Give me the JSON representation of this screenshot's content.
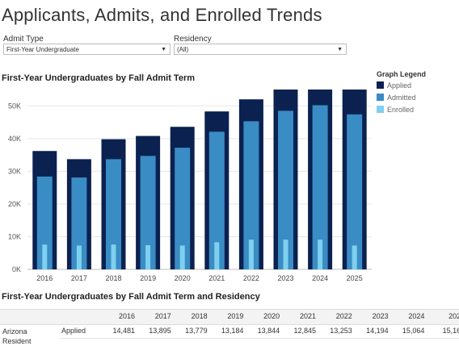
{
  "page": {
    "title": "Applicants, Admits, and Enrolled Trends"
  },
  "filters": {
    "admit_type": {
      "label": "Admit Type",
      "value": "First-Year Undergraduate"
    },
    "residency": {
      "label": "Residency",
      "value": "(All)"
    }
  },
  "legend": {
    "title": "Graph Legend",
    "items": [
      {
        "label": "Applied",
        "color": "#0b2150"
      },
      {
        "label": "Admitted",
        "color": "#3a8cc4"
      },
      {
        "label": "Enrolled",
        "color": "#7fd0ee"
      }
    ]
  },
  "chart_data": {
    "type": "bar",
    "title": "First-Year Undergraduates by Fall Admit Term",
    "xlabel": "",
    "ylabel": "",
    "categories": [
      "2016",
      "2017",
      "2018",
      "2019",
      "2020",
      "2021",
      "2022",
      "2023",
      "2024",
      "2025"
    ],
    "series": [
      {
        "name": "Applied",
        "color": "#0b2150",
        "values": [
          36200,
          33700,
          39800,
          40800,
          43600,
          48300,
          52000,
          55200,
          55000,
          55300
        ]
      },
      {
        "name": "Admitted",
        "color": "#3a8cc4",
        "values": [
          28400,
          28100,
          33700,
          34700,
          37200,
          42100,
          45300,
          48500,
          50200,
          47400
        ]
      },
      {
        "name": "Enrolled",
        "color": "#7fd0ee",
        "values": [
          7600,
          7300,
          7600,
          7400,
          7300,
          8300,
          9100,
          9100,
          9100,
          7300
        ]
      }
    ],
    "ylim": [
      0,
      55000
    ],
    "yticks": [
      0,
      10000,
      20000,
      30000,
      40000,
      50000
    ],
    "ytick_labels": [
      "0K",
      "10K",
      "20K",
      "30K",
      "40K",
      "50K"
    ],
    "grid": true
  },
  "table": {
    "title": "First-Year Undergraduates by Fall Admit Term and Residency",
    "years": [
      "2016",
      "2017",
      "2018",
      "2019",
      "2020",
      "2021",
      "2022",
      "2023",
      "2024",
      "202"
    ],
    "rows": [
      {
        "group_line1": "Arizona",
        "group_line2": "Resident",
        "metric": "Applied",
        "values": [
          "14,481",
          "13,895",
          "13,779",
          "13,184",
          "13,844",
          "12,845",
          "13,253",
          "14,194",
          "15,064",
          "15,16"
        ]
      }
    ]
  }
}
